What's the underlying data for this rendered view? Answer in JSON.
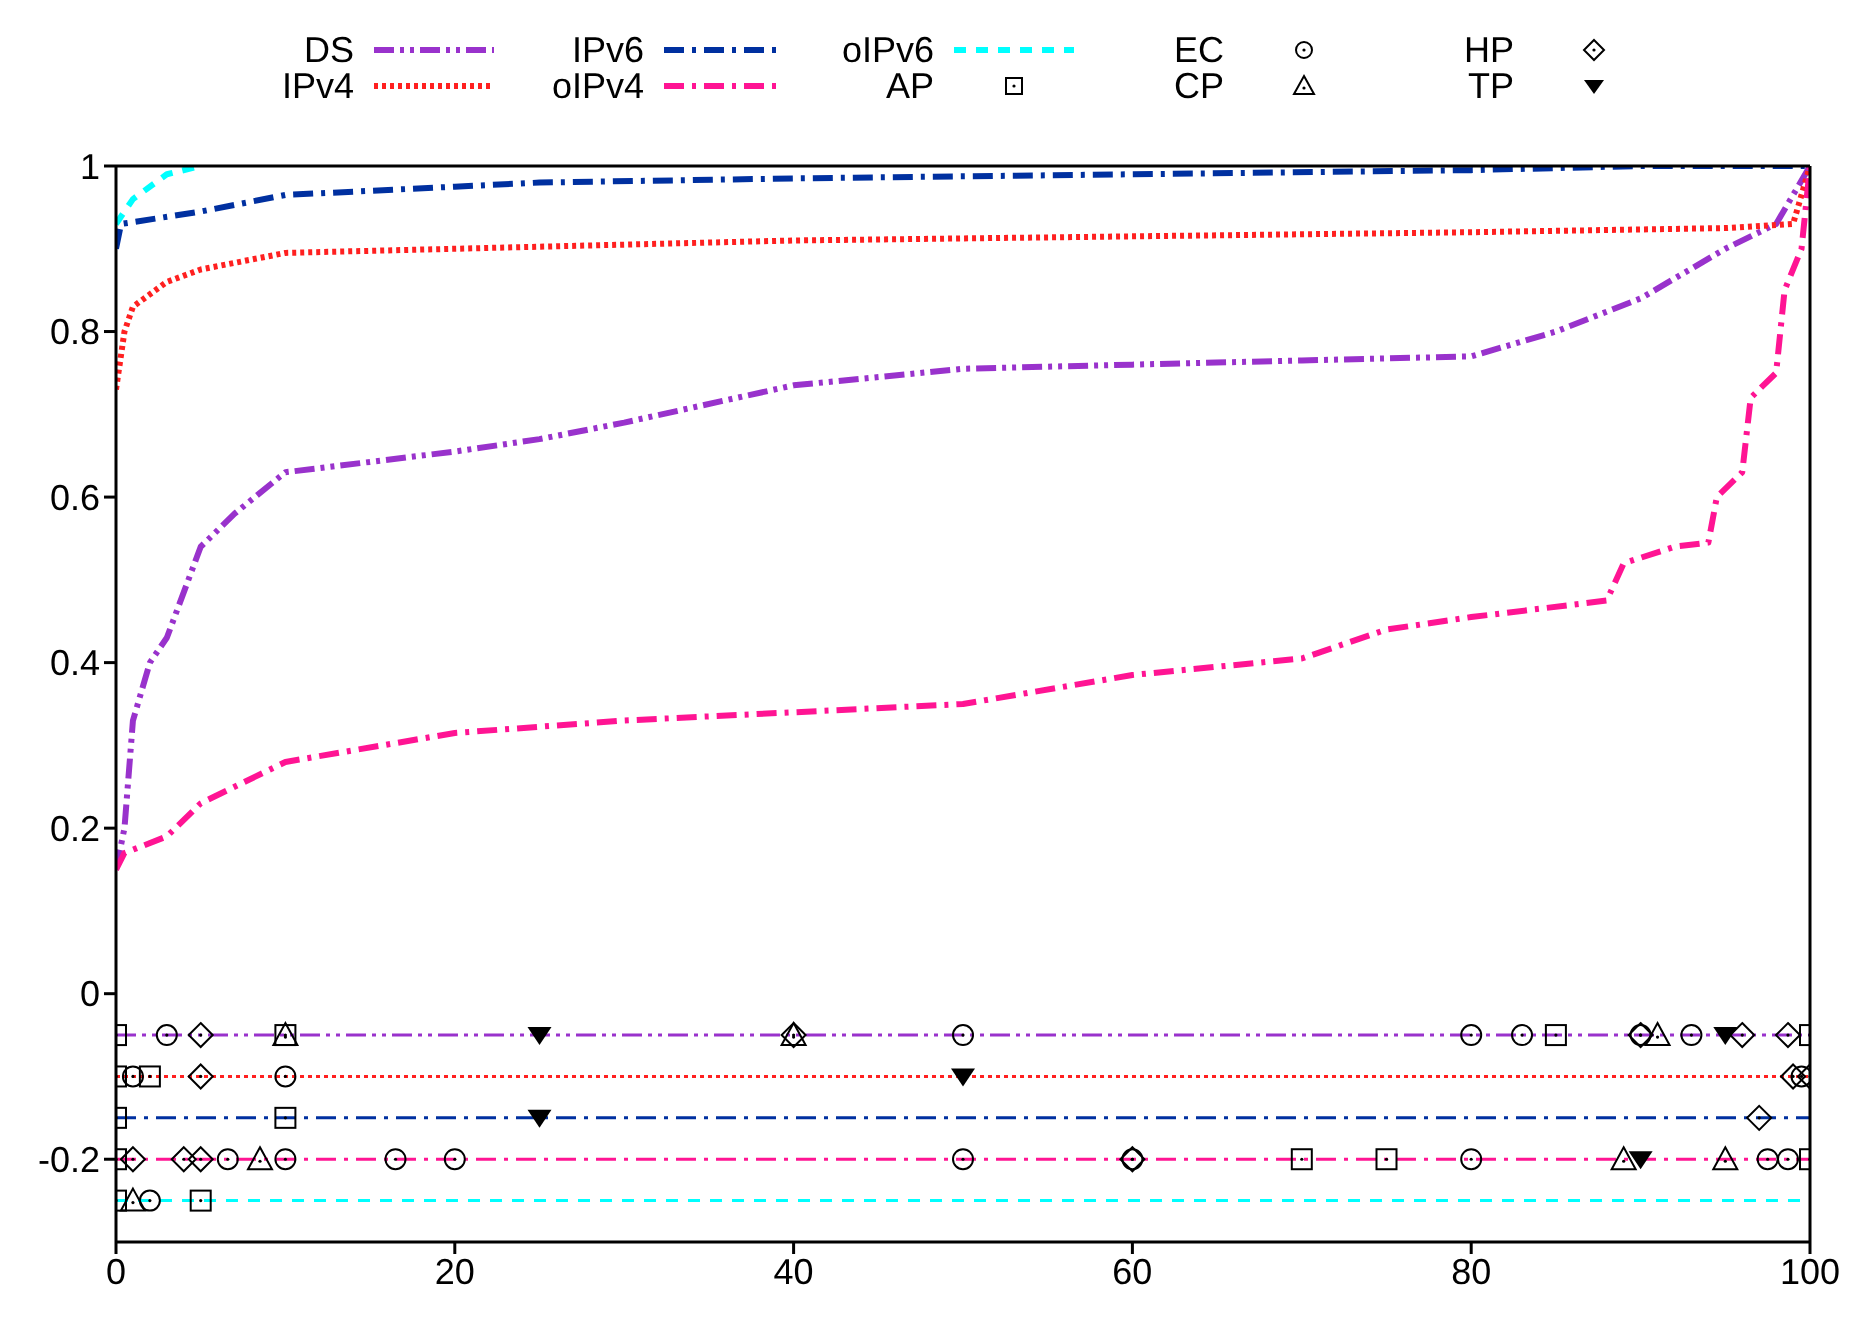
{
  "chart_data": {
    "type": "line",
    "xlim": [
      0,
      100
    ],
    "xticks": [
      0,
      20,
      40,
      60,
      80,
      100
    ],
    "ylim": [
      -0.3,
      1
    ],
    "yticks": [
      -0.2,
      0,
      0.2,
      0.4,
      0.6,
      0.8,
      1
    ],
    "legend": "top",
    "ref_lines": [
      {
        "axis": "y",
        "value": -0.05,
        "color": "#9932cc",
        "line_style": "dashdotdot"
      },
      {
        "axis": "y",
        "value": -0.1,
        "color": "#ff2020",
        "line_style": "dotted"
      },
      {
        "axis": "y",
        "value": -0.15,
        "color": "#0030a0",
        "line_style": "dashdot"
      },
      {
        "axis": "y",
        "value": -0.2,
        "color": "#ff1493",
        "line_style": "dashdot"
      },
      {
        "axis": "y",
        "value": -0.25,
        "color": "#00ffff",
        "line_style": "dashed"
      }
    ],
    "series": [
      {
        "name": "DS",
        "color": "#9932cc",
        "line_style": "dashdotdot",
        "x": [
          0,
          0.5,
          1,
          2,
          3,
          5,
          7,
          10,
          20,
          25,
          30,
          40,
          50,
          60,
          70,
          80,
          85,
          90,
          95,
          98,
          100
        ],
        "values": [
          0.15,
          0.2,
          0.33,
          0.4,
          0.43,
          0.54,
          0.58,
          0.63,
          0.655,
          0.67,
          0.69,
          0.735,
          0.755,
          0.76,
          0.765,
          0.77,
          0.8,
          0.84,
          0.9,
          0.93,
          1
        ]
      },
      {
        "name": "IPv4",
        "color": "#ff2020",
        "line_style": "dotted",
        "x": [
          0,
          0.5,
          1,
          3,
          5,
          10,
          20,
          40,
          60,
          80,
          95,
          99,
          100
        ],
        "values": [
          0.73,
          0.8,
          0.83,
          0.86,
          0.875,
          0.895,
          0.9,
          0.91,
          0.915,
          0.92,
          0.925,
          0.93,
          1
        ]
      },
      {
        "name": "IPv6",
        "color": "#0030a0",
        "line_style": "dashdot",
        "x": [
          0,
          0.3,
          5,
          10,
          20,
          25,
          40,
          60,
          80,
          90,
          100
        ],
        "values": [
          0.9,
          0.93,
          0.945,
          0.965,
          0.975,
          0.98,
          0.985,
          0.99,
          0.995,
          1,
          1
        ]
      },
      {
        "name": "oIPv4",
        "color": "#ff1493",
        "line_style": "dashdot",
        "x": [
          0,
          0.5,
          3,
          5,
          10,
          20,
          30,
          40,
          50,
          60,
          70,
          75,
          80,
          88,
          89,
          92,
          94,
          94.5,
          96,
          96.5,
          98,
          98.5,
          99.5,
          100
        ],
        "values": [
          0.15,
          0.17,
          0.19,
          0.23,
          0.28,
          0.315,
          0.33,
          0.34,
          0.35,
          0.385,
          0.405,
          0.44,
          0.455,
          0.475,
          0.52,
          0.54,
          0.545,
          0.6,
          0.63,
          0.72,
          0.75,
          0.85,
          0.9,
          1
        ]
      },
      {
        "name": "oIPv6",
        "color": "#00ffff",
        "line_style": "dashed",
        "x": [
          0,
          1,
          3,
          5
        ],
        "values": [
          0.93,
          0.96,
          0.99,
          1
        ]
      },
      {
        "name": "AP",
        "type": "scatter",
        "marker": "square",
        "color": "#000000",
        "x": [
          0,
          10,
          85,
          100,
          0,
          2,
          0,
          10,
          0,
          70,
          75,
          100,
          0,
          5
        ],
        "values": [
          -0.05,
          -0.05,
          -0.05,
          -0.05,
          -0.1,
          -0.1,
          -0.15,
          -0.15,
          -0.2,
          -0.2,
          -0.2,
          -0.2,
          -0.25,
          -0.25
        ]
      },
      {
        "name": "EC",
        "type": "scatter",
        "marker": "circle",
        "color": "#000000",
        "x": [
          3,
          50,
          80,
          83,
          90,
          93,
          1,
          10,
          99.5,
          6.6,
          10,
          16.5,
          20,
          50,
          60,
          80,
          97.5,
          98.7,
          2
        ],
        "values": [
          -0.05,
          -0.05,
          -0.05,
          -0.05,
          -0.05,
          -0.05,
          -0.1,
          -0.1,
          -0.1,
          -0.2,
          -0.2,
          -0.2,
          -0.2,
          -0.2,
          -0.2,
          -0.2,
          -0.2,
          -0.2,
          -0.25
        ]
      },
      {
        "name": "CP",
        "type": "scatter",
        "marker": "triangle",
        "color": "#000000",
        "x": [
          10,
          40,
          91,
          8.5,
          89,
          95,
          1
        ],
        "values": [
          -0.05,
          -0.05,
          -0.05,
          -0.2,
          -0.2,
          -0.2,
          -0.25
        ]
      },
      {
        "name": "HP",
        "type": "scatter",
        "marker": "diamond",
        "color": "#000000",
        "x": [
          5,
          40,
          90,
          96,
          98.7,
          5,
          99,
          100,
          97,
          1,
          4,
          5,
          60
        ],
        "values": [
          -0.05,
          -0.05,
          -0.05,
          -0.05,
          -0.05,
          -0.1,
          -0.1,
          -0.1,
          -0.15,
          -0.2,
          -0.2,
          -0.2,
          -0.2
        ]
      },
      {
        "name": "TP",
        "type": "scatter",
        "marker": "triangle-down",
        "color": "#000000",
        "x": [
          25,
          95,
          50,
          25,
          90
        ],
        "values": [
          -0.05,
          -0.05,
          -0.1,
          -0.15,
          -0.2
        ]
      }
    ]
  }
}
